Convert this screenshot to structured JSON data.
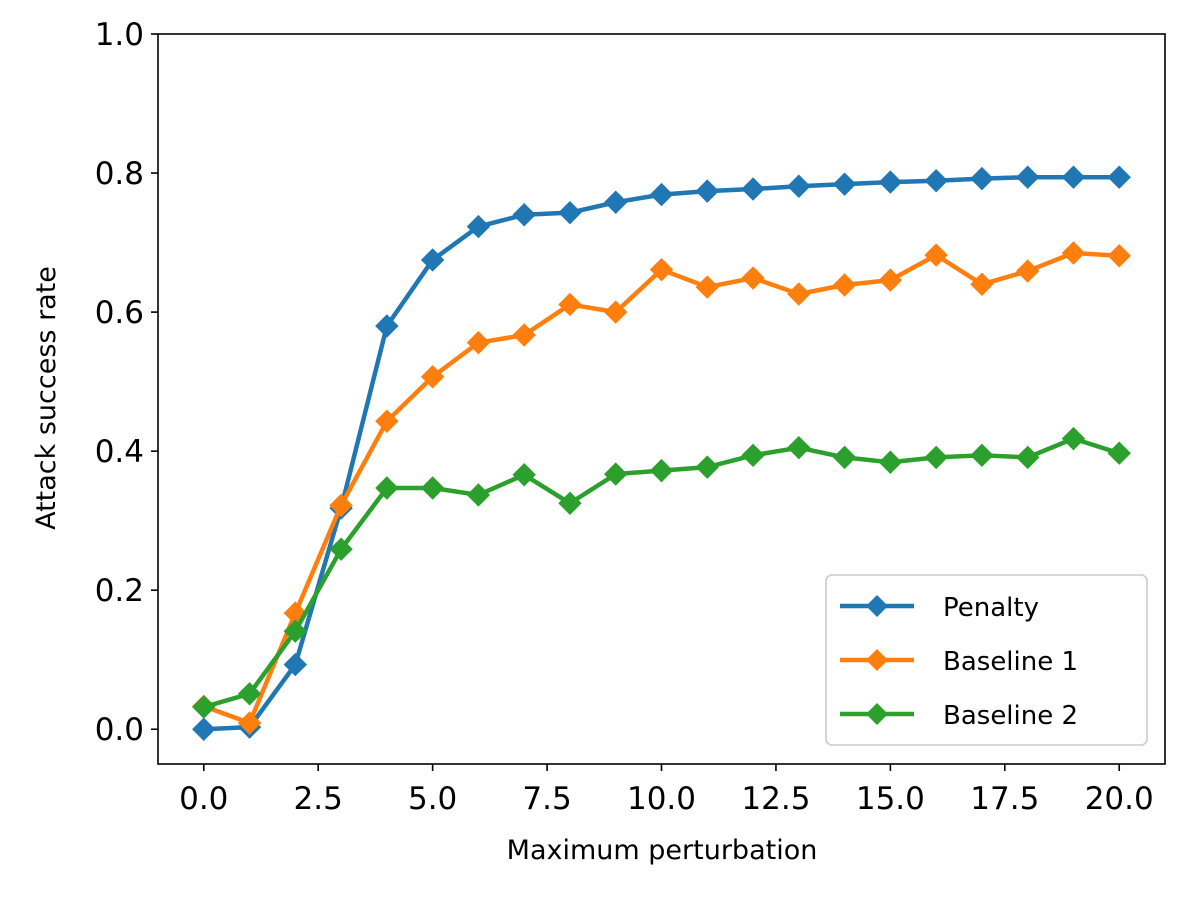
{
  "chart_data": {
    "type": "line",
    "title": "",
    "xlabel": "Maximum perturbation",
    "ylabel": "Attack success rate",
    "xlim": [
      -1,
      21
    ],
    "ylim": [
      -0.05,
      1.0
    ],
    "x_ticks": [
      0.0,
      2.5,
      5.0,
      7.5,
      10.0,
      12.5,
      15.0,
      17.5,
      20.0
    ],
    "x_tick_labels": [
      "0.0",
      "2.5",
      "5.0",
      "7.5",
      "10.0",
      "12.5",
      "15.0",
      "17.5",
      "20.0"
    ],
    "y_ticks": [
      0.0,
      0.2,
      0.4,
      0.6,
      0.8,
      1.0
    ],
    "y_tick_labels": [
      "0.0",
      "0.2",
      "0.4",
      "0.6",
      "0.8",
      "1.0"
    ],
    "grid": false,
    "legend_position": "lower-right",
    "marker": "diamond",
    "x": [
      0,
      1,
      2,
      3,
      4,
      5,
      6,
      7,
      8,
      9,
      10,
      11,
      12,
      13,
      14,
      15,
      16,
      17,
      18,
      19,
      20
    ],
    "series": [
      {
        "name": "Penalty",
        "color": "#1f77b4",
        "values": [
          0.0,
          0.003,
          0.093,
          0.318,
          0.58,
          0.675,
          0.723,
          0.74,
          0.743,
          0.758,
          0.769,
          0.774,
          0.777,
          0.781,
          0.784,
          0.787,
          0.789,
          0.792,
          0.794,
          0.794,
          0.794
        ]
      },
      {
        "name": "Baseline 1",
        "color": "#ff7f0e",
        "values": [
          0.033,
          0.009,
          0.167,
          0.322,
          0.443,
          0.507,
          0.556,
          0.567,
          0.611,
          0.6,
          0.661,
          0.636,
          0.649,
          0.626,
          0.639,
          0.646,
          0.682,
          0.64,
          0.659,
          0.685,
          0.681
        ]
      },
      {
        "name": "Baseline 2",
        "color": "#2ca02c",
        "values": [
          0.032,
          0.051,
          0.141,
          0.259,
          0.347,
          0.347,
          0.337,
          0.366,
          0.325,
          0.367,
          0.372,
          0.377,
          0.394,
          0.405,
          0.391,
          0.384,
          0.391,
          0.394,
          0.391,
          0.418,
          0.397
        ]
      }
    ]
  }
}
